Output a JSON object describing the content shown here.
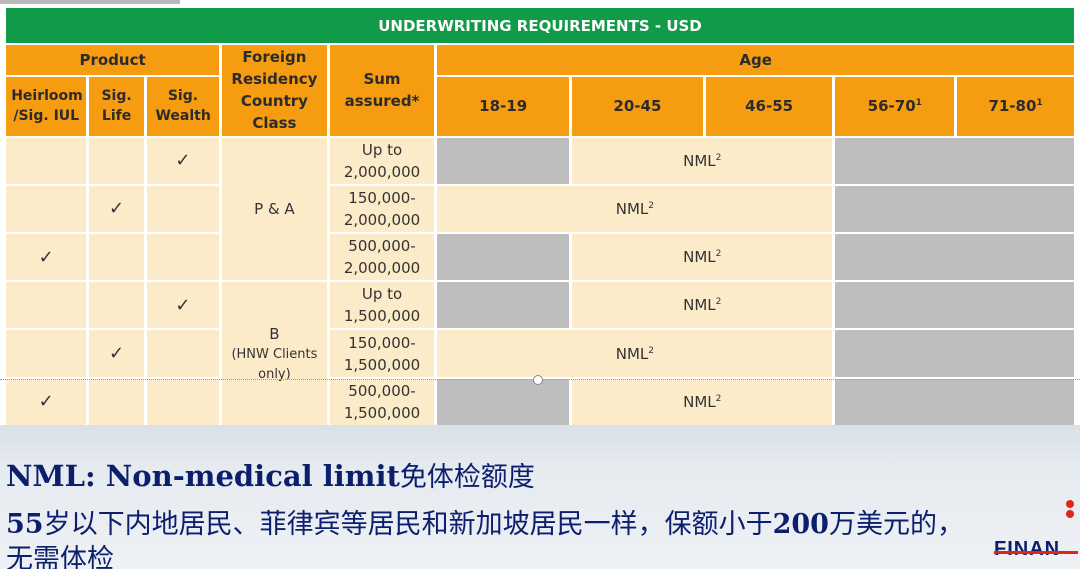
{
  "table": {
    "title": "UNDERWRITING REQUIREMENTS - USD",
    "product_header": "Product",
    "products": [
      "Heirloom /Sig. IUL",
      "Sig. Life",
      "Sig. Wealth"
    ],
    "country_header": "Foreign Residency Country Class",
    "sum_header": "Sum assured*",
    "age_header": "Age",
    "age_bands": [
      "18-19",
      "20-45",
      "46-55",
      "56-70",
      "71-80"
    ],
    "age_band_notes": [
      "",
      "",
      "",
      "1",
      "1"
    ],
    "country_classes": [
      {
        "label": "P & A",
        "sub": ""
      },
      {
        "label": "B",
        "sub": "(HNW Clients only)"
      }
    ],
    "tick": "✓",
    "nml": "NML",
    "nml_note": "2",
    "rows": [
      {
        "product": 2,
        "sum": [
          "Up to",
          "2,000,000"
        ]
      },
      {
        "product": 1,
        "sum": [
          "150,000-",
          "2,000,000"
        ]
      },
      {
        "product": 0,
        "sum": [
          "500,000-",
          "2,000,000"
        ]
      },
      {
        "product": 2,
        "sum": [
          "Up to",
          "1,500,000"
        ]
      },
      {
        "product": 1,
        "sum": [
          "150,000-",
          "1,500,000"
        ]
      },
      {
        "product": 0,
        "sum": [
          "500,000-",
          "1,500,000"
        ]
      }
    ]
  },
  "notes": {
    "line1_bold": "NML: Non-medical limit",
    "line1_cn": "免体检额度",
    "line2_a": "55",
    "line2_b": "岁以下内地居民、菲律宾等居民和新加坡居民一样，保额小于",
    "line2_c": "200",
    "line2_d": "万美元的，",
    "line3": "无需体检"
  },
  "logo_text": "FINAN",
  "colors": {
    "title_green": "#119a47",
    "header_orange": "#f59c10",
    "cell_cream": "#fbebc9",
    "cell_grey": "#bebebe",
    "note_blue": "#0c1f6e"
  }
}
